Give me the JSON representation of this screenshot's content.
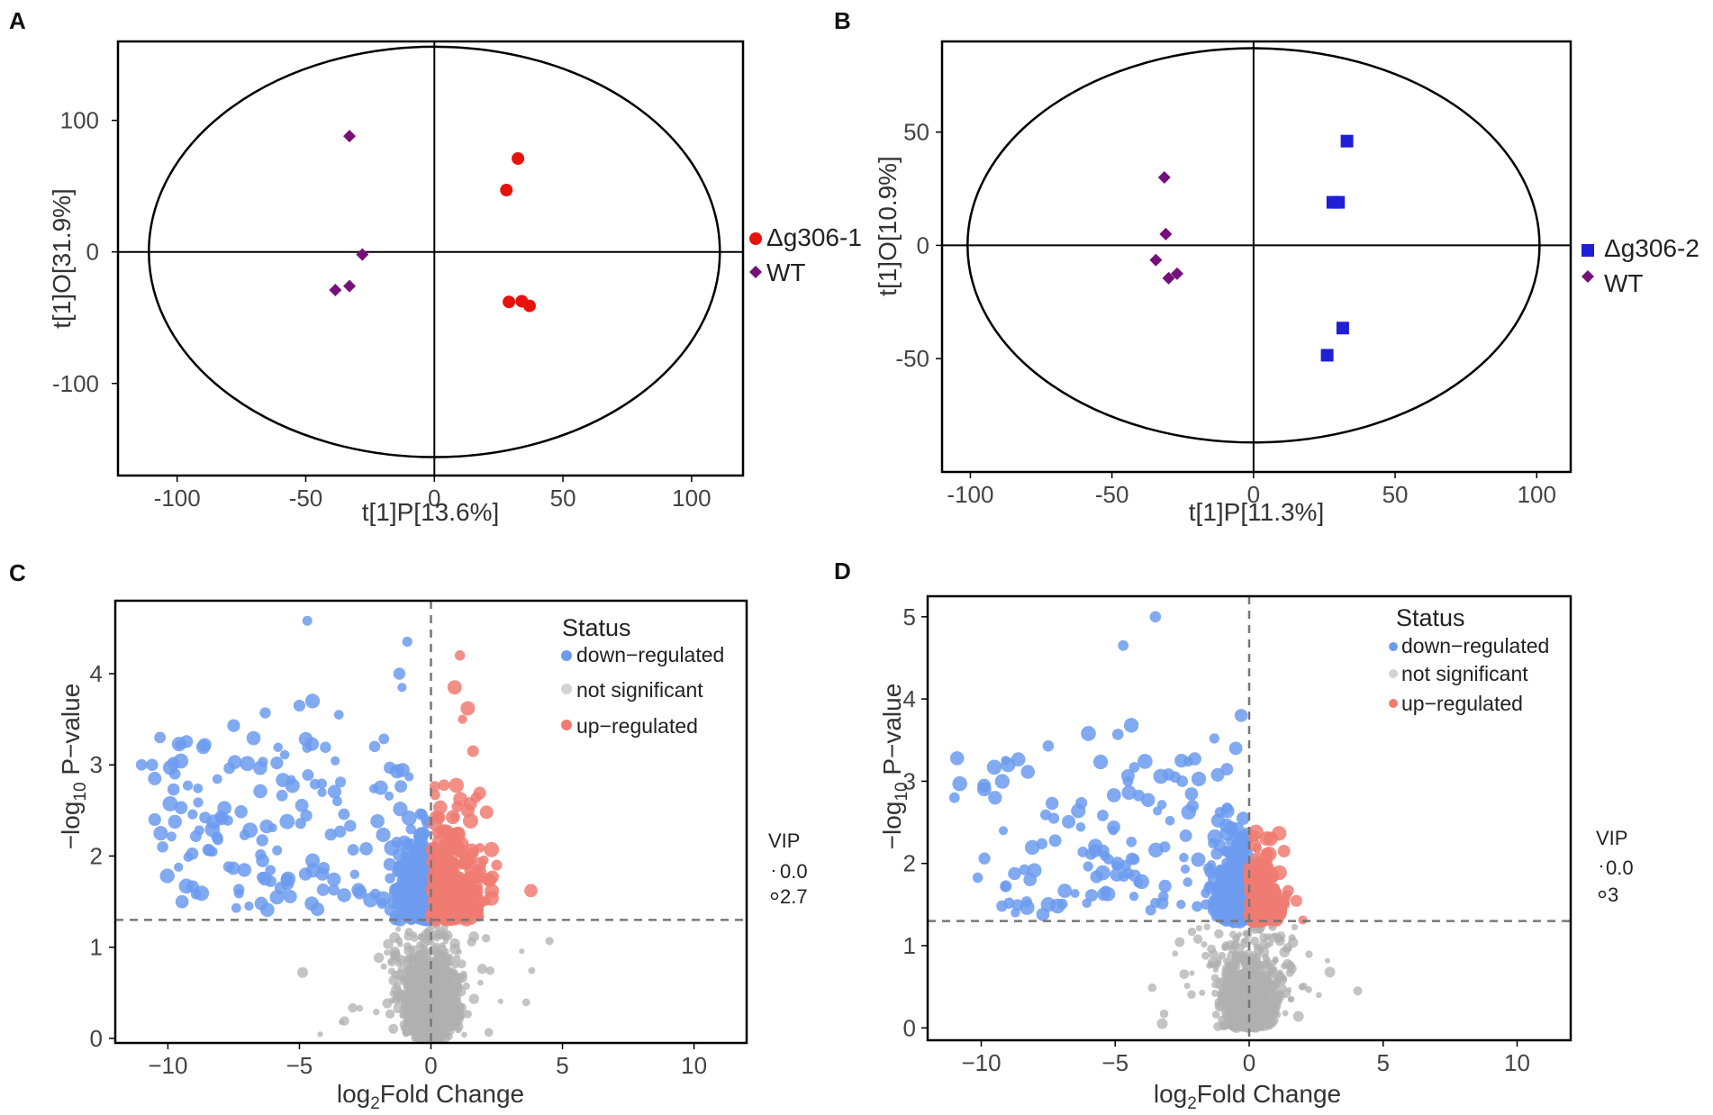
{
  "colors": {
    "ko_red": "#e8120c",
    "wt_purple": "#76107a",
    "ko_blue": "#1f1fd6",
    "down_blue": "#6c9bee",
    "up_red": "#f07b72",
    "ns_gray": "#b0b0b0"
  },
  "chart_data": [
    {
      "panel": "A",
      "type": "scatter",
      "subtype": "OPLS-DA score plot",
      "xlabel": "t[1]P[13.6%]",
      "ylabel": "t[1]O[31.9%]",
      "xlim": [
        -123,
        120
      ],
      "ylim": [
        -170,
        160
      ],
      "xticks": [
        -100,
        -50,
        0,
        50,
        100
      ],
      "xtick_labels": [
        "-100",
        "-50",
        "0",
        "50",
        "100"
      ],
      "yticks": [
        -100,
        0,
        100
      ],
      "ytick_labels": [
        "-100",
        "0",
        "100"
      ],
      "ellipse": {
        "rx": 111,
        "ry": 156
      },
      "series": [
        {
          "name": "Δg306-1",
          "marker": "circle",
          "color": "#e8120c",
          "points": [
            [
              32.5,
              71
            ],
            [
              28,
              47
            ],
            [
              29,
              -38
            ],
            [
              34,
              -37.5
            ],
            [
              37,
              -41
            ]
          ]
        },
        {
          "name": "WT",
          "marker": "diamond",
          "color": "#76107a",
          "points": [
            [
              -33,
              88
            ],
            [
              -28,
              -2
            ],
            [
              -33,
              -26
            ],
            [
              -38.5,
              -29
            ]
          ]
        }
      ]
    },
    {
      "panel": "B",
      "type": "scatter",
      "subtype": "OPLS-DA score plot",
      "xlabel": "t[1]P[11.3%]",
      "ylabel": "t[1]O[10.9%]",
      "xlim": [
        -110,
        112
      ],
      "ylim": [
        -100,
        90
      ],
      "xticks": [
        -100,
        -50,
        0,
        50,
        100
      ],
      "xtick_labels": [
        "-100",
        "-50",
        "0",
        "50",
        "100"
      ],
      "yticks": [
        -50,
        0,
        50
      ],
      "ytick_labels": [
        "-50",
        "0",
        "50"
      ],
      "ellipse": {
        "rx": 101,
        "ry": 87
      },
      "series": [
        {
          "name": "Δg306-2",
          "marker": "square",
          "color": "#1f1fd6",
          "points": [
            [
              33,
              46
            ],
            [
              28,
              19
            ],
            [
              30,
              19
            ],
            [
              31.5,
              -36.5
            ],
            [
              26,
              -48.5
            ]
          ]
        },
        {
          "name": "WT",
          "marker": "diamond",
          "color": "#76107a",
          "points": [
            [
              -31.5,
              30
            ],
            [
              -31,
              5
            ],
            [
              -34.5,
              -6.5
            ],
            [
              -30,
              -14.5
            ],
            [
              -27,
              -12.5
            ]
          ]
        }
      ]
    },
    {
      "panel": "C",
      "type": "scatter",
      "subtype": "volcano plot",
      "xlabel_prefix": "log",
      "xlabel_sub": "2",
      "xlabel_suffix": "Fold Change",
      "ylabel_prefix": "−log",
      "ylabel_sub": "10",
      "ylabel_suffix": " P−value",
      "xlim": [
        -12,
        12
      ],
      "ylim": [
        -0.05,
        4.8
      ],
      "xticks": [
        -10,
        -5,
        0,
        5,
        10
      ],
      "xtick_labels": [
        "−10",
        "−5",
        "0",
        "5",
        "10"
      ],
      "yticks": [
        0,
        1,
        2,
        3,
        4
      ],
      "ytick_labels": [
        "0",
        "1",
        "2",
        "3",
        "4"
      ],
      "threshold_y": 1.3,
      "threshold_x": 0,
      "legend_title": "Status",
      "legend_items": [
        "down−regulated",
        "not significant",
        "up−regulated"
      ],
      "vip_title": "VIP",
      "vip_labels": [
        "0.0",
        "2.7"
      ],
      "highlight_points": {
        "down": [
          [
            -4.7,
            4.58
          ],
          [
            -0.9,
            4.35
          ],
          [
            -1.2,
            4.0
          ],
          [
            -1.1,
            3.85
          ],
          [
            -10.3,
            3.3
          ],
          [
            -5.0,
            3.65
          ],
          [
            -4.5,
            3.7
          ],
          [
            -3.5,
            3.55
          ],
          [
            -6.3,
            3.57
          ],
          [
            -7.5,
            3.43
          ],
          [
            -10.6,
            3.0
          ],
          [
            -11,
            3.0
          ],
          [
            -10.5,
            2.85
          ],
          [
            -8.6,
            3.22
          ],
          [
            -9.5,
            2.53
          ],
          [
            -10.5,
            2.4
          ],
          [
            -10.2,
            2.1
          ],
          [
            -9.3,
            1.67
          ],
          [
            -7.4,
            1.43
          ],
          [
            -7.3,
            1.59
          ],
          [
            -5.7,
            1.65
          ],
          [
            -4.1,
            1.63
          ],
          [
            -3.3,
            1.57
          ],
          [
            -2.7,
            1.6
          ],
          [
            -2.9,
            1.8
          ],
          [
            -4.5,
            1.95
          ],
          [
            -6.4,
            1.95
          ],
          [
            -8.1,
            2.18
          ]
        ],
        "up": [
          [
            1.1,
            4.2
          ],
          [
            0.9,
            3.85
          ],
          [
            1.4,
            3.62
          ],
          [
            3.8,
            1.62
          ],
          [
            2.5,
            1.9
          ],
          [
            1.6,
            3.15
          ],
          [
            1.2,
            3.5
          ]
        ]
      },
      "cloud_seed": 7
    },
    {
      "panel": "D",
      "type": "scatter",
      "subtype": "volcano plot",
      "xlabel_prefix": "log",
      "xlabel_sub": "2",
      "xlabel_suffix": "Fold Change",
      "ylabel_prefix": "−log",
      "ylabel_sub": "10",
      "ylabel_suffix": " P−value",
      "xlim": [
        -12,
        12
      ],
      "ylim": [
        -0.15,
        5.25
      ],
      "xticks": [
        -10,
        -5,
        0,
        5,
        10
      ],
      "xtick_labels": [
        "−10",
        "−5",
        "0",
        "5",
        "10"
      ],
      "yticks": [
        0,
        1,
        2,
        3,
        4,
        5
      ],
      "ytick_labels": [
        "0",
        "1",
        "2",
        "3",
        "4",
        "5"
      ],
      "threshold_y": 1.3,
      "threshold_x": 0,
      "legend_title": "Status",
      "legend_items": [
        "down−regulated",
        "not significant",
        "up−regulated"
      ],
      "vip_title": "VIP",
      "vip_labels": [
        "0.0",
        "3"
      ],
      "highlight_points": {
        "down": [
          [
            -3.5,
            5.0
          ],
          [
            -4.7,
            4.65
          ],
          [
            -0.3,
            3.8
          ],
          [
            -0.5,
            3.4
          ],
          [
            -10.9,
            3.28
          ],
          [
            -6,
            3.58
          ],
          [
            -4.9,
            3.57
          ],
          [
            -4.4,
            3.68
          ],
          [
            -11,
            2.8
          ],
          [
            -10.8,
            2.97
          ],
          [
            -9.0,
            3.2
          ],
          [
            -7.5,
            3.43
          ],
          [
            -7.7,
            1.38
          ],
          [
            -7.5,
            1.5
          ],
          [
            -4.3,
            1.6
          ],
          [
            -3.2,
            1.6
          ],
          [
            -3.5,
            1.52
          ],
          [
            -2.5,
            3.0
          ],
          [
            -1.3,
            3.52
          ]
        ],
        "up": [
          [
            0.25,
            2.38
          ],
          [
            1.3,
            2.15
          ],
          [
            0.8,
            2.3
          ]
        ]
      },
      "cloud_seed": 13
    }
  ],
  "panels": {
    "A": {
      "letter": "A",
      "legend": [
        "Δg306-1",
        "WT"
      ]
    },
    "B": {
      "letter": "B",
      "legend": [
        "Δg306-2",
        "WT"
      ]
    },
    "C": {
      "letter": "C"
    },
    "D": {
      "letter": "D"
    }
  }
}
